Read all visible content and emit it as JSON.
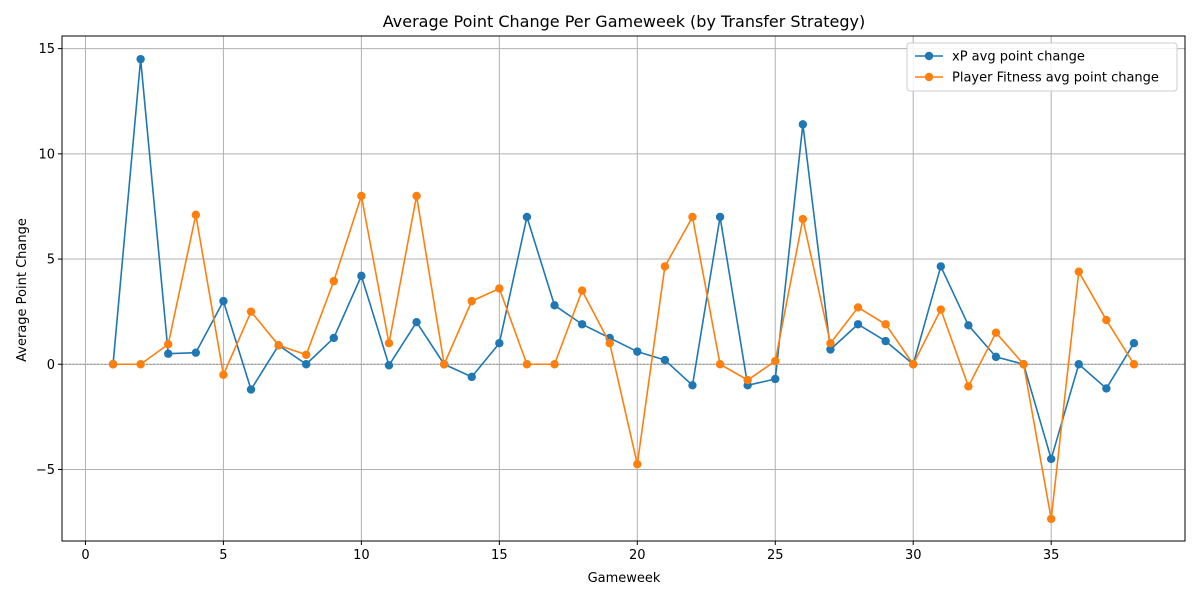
{
  "chart_data": {
    "type": "line",
    "title": "Average Point Change Per Gameweek (by Transfer Strategy)",
    "xlabel": "Gameweek",
    "ylabel": "Average Point Change",
    "xlim": [
      -0.85,
      39.85
    ],
    "ylim": [
      -8.4,
      15.6
    ],
    "xticks": [
      0,
      5,
      10,
      15,
      20,
      25,
      30,
      35
    ],
    "yticks": [
      -5,
      0,
      5,
      10,
      15
    ],
    "ytick_labels": [
      "−5",
      "0",
      "5",
      "10",
      "15"
    ],
    "grid": true,
    "legend_position": "top-right",
    "zero_line": true,
    "x": [
      1,
      2,
      3,
      4,
      5,
      6,
      7,
      8,
      9,
      10,
      11,
      12,
      13,
      14,
      15,
      16,
      17,
      18,
      19,
      20,
      21,
      22,
      23,
      24,
      25,
      26,
      27,
      28,
      29,
      30,
      31,
      32,
      33,
      34,
      35,
      36,
      37,
      38
    ],
    "series": [
      {
        "name": "xP avg point change",
        "color": "#1f77b4",
        "values": [
          0,
          14.5,
          0.5,
          0.55,
          3.0,
          -1.2,
          0.9,
          0,
          1.25,
          4.2,
          -0.05,
          2.0,
          0,
          -0.6,
          1.0,
          7.0,
          2.8,
          1.9,
          1.25,
          0.6,
          0.2,
          -1.0,
          7.0,
          -1.0,
          -0.7,
          11.4,
          0.7,
          1.9,
          1.1,
          0,
          4.65,
          1.85,
          0.35,
          0,
          -4.5,
          0,
          -1.15,
          1.0
        ]
      },
      {
        "name": "Player Fitness avg point change",
        "color": "#ff7f0e",
        "values": [
          0,
          0,
          0.95,
          7.1,
          -0.5,
          2.5,
          0.9,
          0.45,
          3.95,
          8.0,
          1.0,
          8.0,
          0,
          3.0,
          3.6,
          0,
          0,
          3.5,
          1.0,
          -4.75,
          4.65,
          7.0,
          0,
          -0.75,
          0.15,
          6.9,
          1.0,
          2.7,
          1.9,
          0,
          2.6,
          -1.05,
          1.5,
          0,
          -7.35,
          4.4,
          2.1,
          0
        ]
      }
    ]
  }
}
